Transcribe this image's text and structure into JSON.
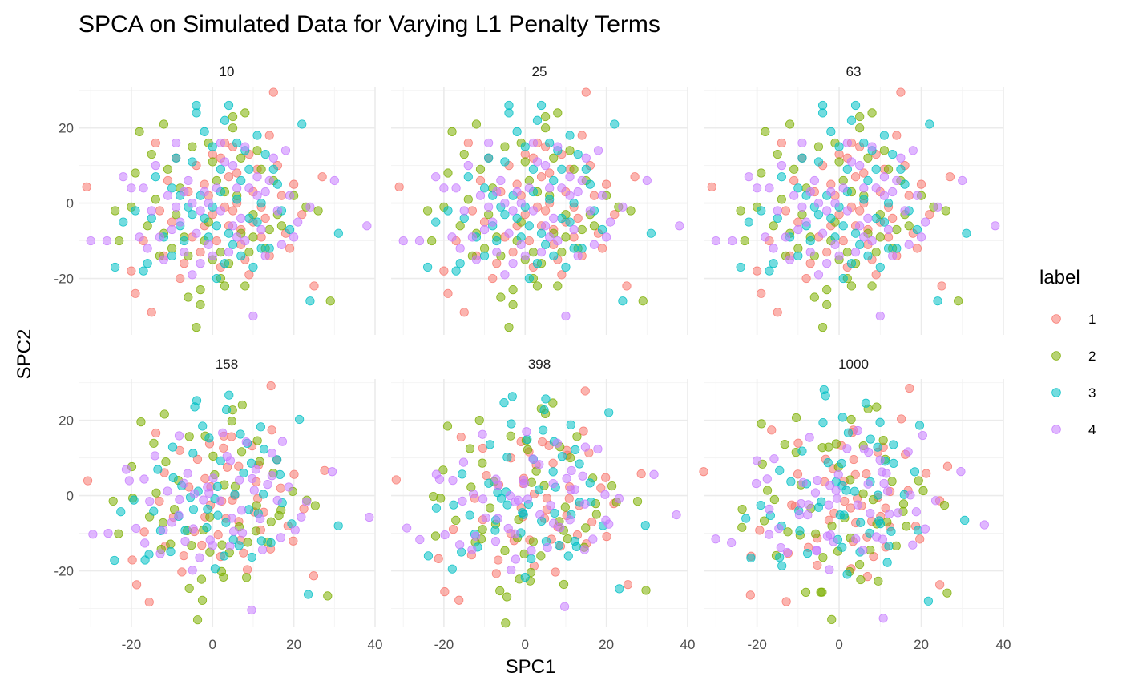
{
  "chart_data": {
    "type": "scatter",
    "title": "SPCA on Simulated Data for Varying L1 Penalty Terms",
    "xlabel": "SPC1",
    "ylabel": "SPC2",
    "xlim": [
      -33,
      40
    ],
    "ylim": [
      -35,
      31
    ],
    "x_ticks": [
      -20,
      0,
      20,
      40
    ],
    "y_ticks": [
      -20,
      0,
      20
    ],
    "x_tick_labels": [
      "-20",
      "0",
      "20",
      "40"
    ],
    "y_tick_labels": [
      "-20",
      "0",
      "20"
    ],
    "grid": true,
    "facets": [
      "10",
      "25",
      "63",
      "158",
      "398",
      "1000"
    ],
    "legend": {
      "title": "label",
      "position": "right",
      "entries": [
        {
          "label": "1",
          "color": "#F8766D"
        },
        {
          "label": "2",
          "color": "#7CAE00"
        },
        {
          "label": "3",
          "color": "#00BFC4"
        },
        {
          "label": "4",
          "color": "#C77CFF"
        }
      ]
    },
    "point_alpha": 0.55,
    "series": [
      {
        "label": "1",
        "points": [
          [
            -31,
            4.3
          ],
          [
            -20,
            -18
          ],
          [
            -19,
            -24
          ],
          [
            -15,
            -29
          ],
          [
            -12,
            -14
          ],
          [
            -8,
            -20
          ],
          [
            -5,
            -9
          ],
          [
            -2,
            5
          ],
          [
            0,
            -3
          ],
          [
            2,
            12
          ],
          [
            4,
            -6
          ],
          [
            6,
            8
          ],
          [
            8,
            -15
          ],
          [
            10,
            3
          ],
          [
            12,
            -9
          ],
          [
            14,
            18
          ],
          [
            15,
            29.5
          ],
          [
            17,
            2
          ],
          [
            19,
            -12
          ],
          [
            22,
            -3
          ],
          [
            25,
            -22
          ],
          [
            27,
            7
          ],
          [
            -14,
            16
          ],
          [
            -10,
            -5
          ],
          [
            -6,
            3
          ],
          [
            -3,
            -13
          ],
          [
            1,
            -10
          ],
          [
            3,
            16
          ],
          [
            5,
            -2
          ],
          [
            7,
            -11
          ],
          [
            9,
            -19
          ],
          [
            11,
            9
          ],
          [
            13,
            -4
          ],
          [
            16,
            10
          ],
          [
            18,
            -8
          ],
          [
            20,
            5
          ],
          [
            -17,
            -10
          ],
          [
            -11,
            6
          ],
          [
            -7,
            -16
          ],
          [
            -4,
            10
          ],
          [
            2,
            -17
          ],
          [
            6,
            0
          ],
          [
            9,
            13
          ],
          [
            12,
            -1
          ],
          [
            14,
            -14
          ],
          [
            -1,
            2
          ],
          [
            4,
            7
          ],
          [
            -9,
            12
          ],
          [
            7,
            -7
          ],
          [
            10,
            -5
          ],
          [
            -2,
            -6
          ],
          [
            0,
            13
          ],
          [
            3,
            -1
          ],
          [
            -13,
            -2
          ],
          [
            5,
            15
          ]
        ]
      },
      {
        "label": "2",
        "points": [
          [
            -24,
            -2
          ],
          [
            -23,
            -10
          ],
          [
            -19,
            8
          ],
          [
            -18,
            19
          ],
          [
            -15,
            13
          ],
          [
            -12,
            21
          ],
          [
            -10,
            -12
          ],
          [
            -8,
            4
          ],
          [
            -6,
            -25
          ],
          [
            -4,
            -33
          ],
          [
            -3,
            -23
          ],
          [
            -1,
            -5
          ],
          [
            0,
            11
          ],
          [
            2,
            -13
          ],
          [
            3,
            -22
          ],
          [
            5,
            20
          ],
          [
            7,
            -8
          ],
          [
            8,
            24
          ],
          [
            10,
            -3
          ],
          [
            11,
            14
          ],
          [
            13,
            -12
          ],
          [
            15,
            6
          ],
          [
            17,
            -6
          ],
          [
            20,
            2
          ],
          [
            23,
            -1
          ],
          [
            26,
            -2
          ],
          [
            29,
            -26
          ],
          [
            -16,
            -6
          ],
          [
            -13,
            -14
          ],
          [
            -11,
            9
          ],
          [
            -7,
            -9
          ],
          [
            -5,
            15
          ],
          [
            -2,
            -10
          ],
          [
            1,
            6
          ],
          [
            4,
            -16
          ],
          [
            6,
            2
          ],
          [
            9,
            -13
          ],
          [
            12,
            9
          ],
          [
            14,
            -7
          ],
          [
            -20,
            -1
          ],
          [
            -9,
            -3
          ],
          [
            -3,
            -27
          ],
          [
            0,
            -15
          ],
          [
            5,
            23
          ],
          [
            8,
            -22
          ],
          [
            -14,
            1
          ],
          [
            3,
            3
          ],
          [
            7,
            12
          ],
          [
            -6,
            -14
          ],
          [
            2,
            -20
          ],
          [
            10,
            -9
          ],
          [
            -1,
            16
          ],
          [
            -12,
            -8
          ],
          [
            16,
            -3
          ]
        ]
      },
      {
        "label": "3",
        "points": [
          [
            -24,
            -17
          ],
          [
            -22,
            -5
          ],
          [
            -19,
            -2
          ],
          [
            -17,
            -18
          ],
          [
            -14,
            7
          ],
          [
            -10,
            4
          ],
          [
            -8,
            -6
          ],
          [
            -5,
            11
          ],
          [
            -4,
            26
          ],
          [
            -2,
            -4
          ],
          [
            0,
            15
          ],
          [
            1,
            -20
          ],
          [
            3,
            22
          ],
          [
            4,
            26
          ],
          [
            6,
            1
          ],
          [
            7,
            -14
          ],
          [
            9,
            9
          ],
          [
            10,
            -17
          ],
          [
            12,
            0
          ],
          [
            14,
            -12
          ],
          [
            16,
            5
          ],
          [
            19,
            -7
          ],
          [
            22,
            21
          ],
          [
            24,
            -26
          ],
          [
            31,
            -8
          ],
          [
            -12,
            -9
          ],
          [
            -7,
            -10
          ],
          [
            -3,
            2
          ],
          [
            -1,
            -9
          ],
          [
            2,
            9
          ],
          [
            5,
            -11
          ],
          [
            8,
            14
          ],
          [
            11,
            -5
          ],
          [
            13,
            13
          ],
          [
            17,
            -2
          ],
          [
            -15,
            -4
          ],
          [
            -9,
            12
          ],
          [
            -6,
            -1
          ],
          [
            -2,
            19
          ],
          [
            1,
            -6
          ],
          [
            3,
            -16
          ],
          [
            6,
            16
          ],
          [
            9,
            -4
          ],
          [
            12,
            -12
          ],
          [
            -16,
            -16
          ],
          [
            -4,
            24
          ],
          [
            2,
            3
          ],
          [
            7,
            6
          ],
          [
            -10,
            -14
          ],
          [
            4,
            -8
          ],
          [
            0,
            -1
          ],
          [
            15,
            9
          ],
          [
            -8,
            2
          ],
          [
            11,
            18
          ],
          [
            -5,
            -3
          ]
        ]
      },
      {
        "label": "4",
        "points": [
          [
            -30,
            -10
          ],
          [
            -26,
            -10
          ],
          [
            -22,
            7
          ],
          [
            -18,
            -9
          ],
          [
            -16,
            -12
          ],
          [
            -13,
            -9
          ],
          [
            -11,
            2
          ],
          [
            -9,
            16
          ],
          [
            -7,
            -13
          ],
          [
            -5,
            0
          ],
          [
            -3,
            -16
          ],
          [
            -1,
            -11
          ],
          [
            1,
            4
          ],
          [
            2,
            -2
          ],
          [
            4,
            -13
          ],
          [
            5,
            10
          ],
          [
            7,
            -4
          ],
          [
            8,
            15
          ],
          [
            10,
            -30
          ],
          [
            11,
            2
          ],
          [
            13,
            -14
          ],
          [
            14,
            6
          ],
          [
            16,
            -2
          ],
          [
            18,
            14
          ],
          [
            20,
            -9
          ],
          [
            24,
            -1
          ],
          [
            30,
            6
          ],
          [
            38,
            -6
          ],
          [
            -20,
            4
          ],
          [
            -15,
            -2
          ],
          [
            -12,
            -15
          ],
          [
            -8,
            -5
          ],
          [
            -6,
            6
          ],
          [
            -4,
            -8
          ],
          [
            -2,
            3
          ],
          [
            0,
            -14
          ],
          [
            3,
            11
          ],
          [
            6,
            -9
          ],
          [
            9,
            4
          ],
          [
            12,
            -7
          ],
          [
            15,
            12
          ],
          [
            19,
            2
          ],
          [
            -10,
            -7
          ],
          [
            -7,
            3
          ],
          [
            -5,
            -19
          ],
          [
            -1,
            0
          ],
          [
            2,
            16
          ],
          [
            5,
            -6
          ],
          [
            8,
            -10
          ],
          [
            11,
            7
          ],
          [
            13,
            3
          ],
          [
            -14,
            10
          ],
          [
            -9,
            -1
          ],
          [
            17,
            -11
          ],
          [
            6,
            4
          ],
          [
            -3,
            -2
          ],
          [
            21,
            -5
          ],
          [
            -17,
            4
          ]
        ]
      }
    ]
  }
}
